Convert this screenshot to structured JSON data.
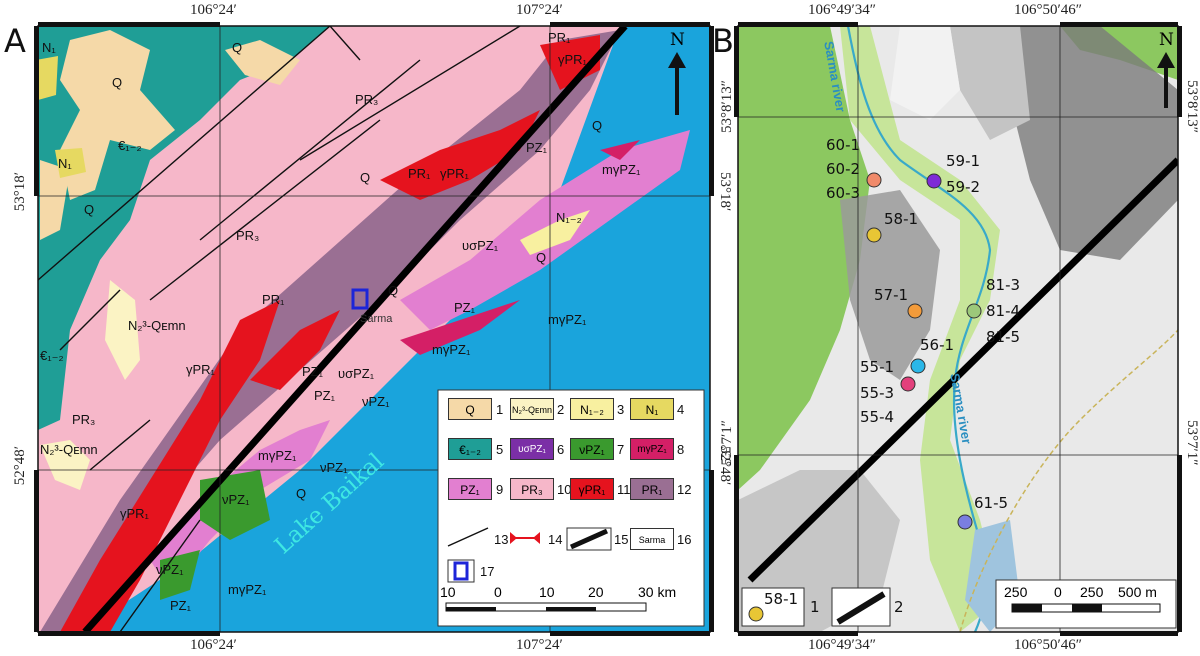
{
  "panels": {
    "a": {
      "letter": "A",
      "lon_top": [
        "106°24′",
        "107°24′"
      ],
      "lon_bottom": [
        "106°24′",
        "107°24′"
      ],
      "lat_left": [
        "53°18′",
        "52°48′"
      ],
      "lat_right": [
        "53°18′",
        "52°48′"
      ],
      "north": "N",
      "units": {
        "q": "Q",
        "pr3": "PR₃",
        "pr1": "PR₁",
        "gpr1": "γPR₁",
        "pz1": "PZ₁",
        "mgpz1": "mγPZ₁",
        "vpz1": "νPZ₁",
        "vspz1": "υσPZ₁",
        "n1": "N₁",
        "n12": "N₁₋₂",
        "c12": "€₁₋₂",
        "nq": "N₂³-Qᴇmn"
      },
      "lake": "Lake Baikal",
      "place": "Sarma",
      "legend": {
        "items": [
          {
            "label": "Q",
            "num": "1",
            "color": "#f5d9a8"
          },
          {
            "label": "N₂³-Qᴇmn",
            "num": "2",
            "color": "#fbf3c4"
          },
          {
            "label": "N₁₋₂",
            "num": "3",
            "color": "#f8f0a0"
          },
          {
            "label": "N₁",
            "num": "4",
            "color": "#e6d961"
          },
          {
            "label": "€₁₋₂",
            "num": "5",
            "color": "#1f9e96"
          },
          {
            "label": "υσPZ₁",
            "num": "6",
            "color": "#7b2fa6"
          },
          {
            "label": "νPZ₁",
            "num": "7",
            "color": "#3a9a2e"
          },
          {
            "label": "mγPZ₁",
            "num": "8",
            "color": "#d41f66"
          },
          {
            "label": "PZ₁",
            "num": "9",
            "color": "#e27fd0"
          },
          {
            "label": "PR₃",
            "num": "10",
            "color": "#f6b7c9"
          },
          {
            "label": "γPR₁",
            "num": "11",
            "color": "#e5131e"
          },
          {
            "label": "PR₁",
            "num": "12",
            "color": "#9a6f93"
          },
          {
            "label": "",
            "num": "13",
            "color": "#ffffff"
          },
          {
            "label": "",
            "num": "14",
            "color": "#ffffff"
          },
          {
            "label": "",
            "num": "15",
            "color": "#ffffff"
          },
          {
            "label": "Sarma",
            "num": "16",
            "color": "#ffffff"
          },
          {
            "label": "",
            "num": "17",
            "color": "#ffffff"
          }
        ],
        "scale": [
          "10",
          "0",
          "10",
          "20",
          "30 km"
        ]
      }
    },
    "b": {
      "letter": "B",
      "lon_top": [
        "106°49′34″",
        "106°50′46″"
      ],
      "lon_bottom": [
        "106°49′34″",
        "106°50′46″"
      ],
      "lat_left": [
        "53°8′13″",
        "53°7′1″"
      ],
      "lat_right": [
        "53°8′13″",
        "53°7′1″"
      ],
      "north": "N",
      "river": "Sarma river",
      "samples": [
        {
          "id": "60-1",
          "color": ""
        },
        {
          "id": "60-2",
          "color": "#f08a6a"
        },
        {
          "id": "60-3",
          "color": ""
        },
        {
          "id": "59-1",
          "color": "#7e2bd6"
        },
        {
          "id": "59-2",
          "color": ""
        },
        {
          "id": "58-1",
          "color": "#e8c635"
        },
        {
          "id": "57-1",
          "color": "#f39b3a"
        },
        {
          "id": "81-3",
          "color": ""
        },
        {
          "id": "81-4",
          "color": "#9cc87a"
        },
        {
          "id": "81-5",
          "color": ""
        },
        {
          "id": "56-1",
          "color": "#2bb7e8"
        },
        {
          "id": "55-1",
          "color": ""
        },
        {
          "id": "55-3",
          "color": "#e3407c"
        },
        {
          "id": "55-4",
          "color": ""
        },
        {
          "id": "61-5",
          "color": "#7a7ee0"
        }
      ],
      "legend": {
        "sample": "58-1",
        "n1": "1",
        "n2": "2"
      },
      "scale": [
        "250",
        "0",
        "250",
        "500 m"
      ]
    }
  }
}
